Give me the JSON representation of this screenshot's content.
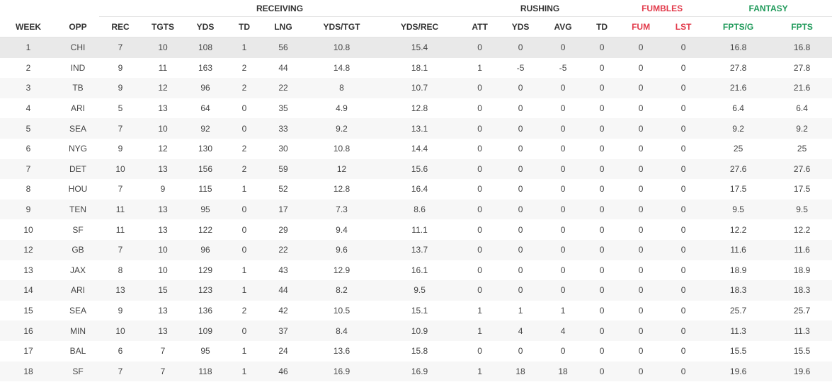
{
  "groups": {
    "receiving": "RECEIVING",
    "rushing": "RUSHING",
    "fumbles": "FUMBLES",
    "fantasy": "FANTASY"
  },
  "columns": [
    "WEEK",
    "OPP",
    "REC",
    "TGTS",
    "YDS",
    "TD",
    "LNG",
    "YDS/TGT",
    "YDS/REC",
    "ATT",
    "YDS",
    "AVG",
    "TD",
    "FUM",
    "LST",
    "FPTS/G",
    "FPTS"
  ],
  "colors": {
    "fumbles": "#e23a4a",
    "fantasy": "#1f9a5a",
    "row_alt": "#f7f7f7",
    "row_active": "#e9e9e9"
  },
  "rows": [
    [
      "1",
      "CHI",
      "7",
      "10",
      "108",
      "1",
      "56",
      "10.8",
      "15.4",
      "0",
      "0",
      "0",
      "0",
      "0",
      "0",
      "16.8",
      "16.8"
    ],
    [
      "2",
      "IND",
      "9",
      "11",
      "163",
      "2",
      "44",
      "14.8",
      "18.1",
      "1",
      "-5",
      "-5",
      "0",
      "0",
      "0",
      "27.8",
      "27.8"
    ],
    [
      "3",
      "TB",
      "9",
      "12",
      "96",
      "2",
      "22",
      "8",
      "10.7",
      "0",
      "0",
      "0",
      "0",
      "0",
      "0",
      "21.6",
      "21.6"
    ],
    [
      "4",
      "ARI",
      "5",
      "13",
      "64",
      "0",
      "35",
      "4.9",
      "12.8",
      "0",
      "0",
      "0",
      "0",
      "0",
      "0",
      "6.4",
      "6.4"
    ],
    [
      "5",
      "SEA",
      "7",
      "10",
      "92",
      "0",
      "33",
      "9.2",
      "13.1",
      "0",
      "0",
      "0",
      "0",
      "0",
      "0",
      "9.2",
      "9.2"
    ],
    [
      "6",
      "NYG",
      "9",
      "12",
      "130",
      "2",
      "30",
      "10.8",
      "14.4",
      "0",
      "0",
      "0",
      "0",
      "0",
      "0",
      "25",
      "25"
    ],
    [
      "7",
      "DET",
      "10",
      "13",
      "156",
      "2",
      "59",
      "12",
      "15.6",
      "0",
      "0",
      "0",
      "0",
      "0",
      "0",
      "27.6",
      "27.6"
    ],
    [
      "8",
      "HOU",
      "7",
      "9",
      "115",
      "1",
      "52",
      "12.8",
      "16.4",
      "0",
      "0",
      "0",
      "0",
      "0",
      "0",
      "17.5",
      "17.5"
    ],
    [
      "9",
      "TEN",
      "11",
      "13",
      "95",
      "0",
      "17",
      "7.3",
      "8.6",
      "0",
      "0",
      "0",
      "0",
      "0",
      "0",
      "9.5",
      "9.5"
    ],
    [
      "10",
      "SF",
      "11",
      "13",
      "122",
      "0",
      "29",
      "9.4",
      "11.1",
      "0",
      "0",
      "0",
      "0",
      "0",
      "0",
      "12.2",
      "12.2"
    ],
    [
      "12",
      "GB",
      "7",
      "10",
      "96",
      "0",
      "22",
      "9.6",
      "13.7",
      "0",
      "0",
      "0",
      "0",
      "0",
      "0",
      "11.6",
      "11.6"
    ],
    [
      "13",
      "JAX",
      "8",
      "10",
      "129",
      "1",
      "43",
      "12.9",
      "16.1",
      "0",
      "0",
      "0",
      "0",
      "0",
      "0",
      "18.9",
      "18.9"
    ],
    [
      "14",
      "ARI",
      "13",
      "15",
      "123",
      "1",
      "44",
      "8.2",
      "9.5",
      "0",
      "0",
      "0",
      "0",
      "0",
      "0",
      "18.3",
      "18.3"
    ],
    [
      "15",
      "SEA",
      "9",
      "13",
      "136",
      "2",
      "42",
      "10.5",
      "15.1",
      "1",
      "1",
      "1",
      "0",
      "0",
      "0",
      "25.7",
      "25.7"
    ],
    [
      "16",
      "MIN",
      "10",
      "13",
      "109",
      "0",
      "37",
      "8.4",
      "10.9",
      "1",
      "4",
      "4",
      "0",
      "0",
      "0",
      "11.3",
      "11.3"
    ],
    [
      "17",
      "BAL",
      "6",
      "7",
      "95",
      "1",
      "24",
      "13.6",
      "15.8",
      "0",
      "0",
      "0",
      "0",
      "0",
      "0",
      "15.5",
      "15.5"
    ],
    [
      "18",
      "SF",
      "7",
      "7",
      "118",
      "1",
      "46",
      "16.9",
      "16.9",
      "1",
      "18",
      "18",
      "0",
      "0",
      "0",
      "19.6",
      "19.6"
    ]
  ]
}
